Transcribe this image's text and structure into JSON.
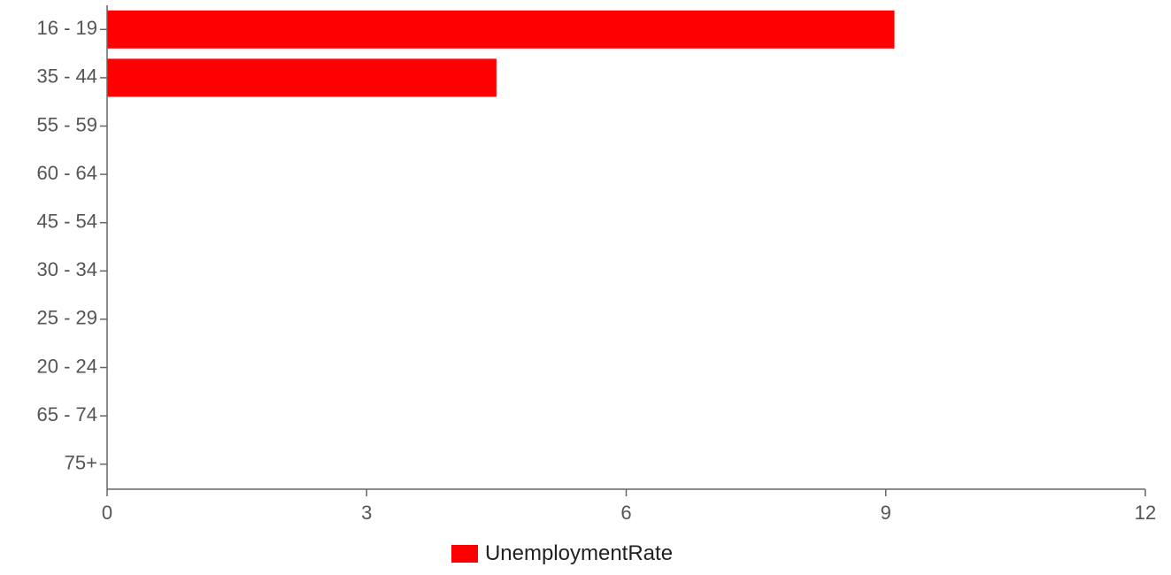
{
  "chart_data": {
    "type": "bar",
    "orientation": "horizontal",
    "categories": [
      "16 - 19",
      "35 - 44",
      "55 - 59",
      "60 - 64",
      "45 - 54",
      "30 - 34",
      "25 - 29",
      "20 - 24",
      "65 - 74",
      "75+"
    ],
    "series": [
      {
        "name": "UnemploymentRate",
        "color": "#ff0000",
        "values": [
          9.1,
          4.5,
          null,
          null,
          null,
          null,
          null,
          null,
          null,
          null
        ]
      }
    ],
    "xticks": [
      "0",
      "3",
      "6",
      "9",
      "12"
    ],
    "xlim": [
      0,
      12
    ],
    "grid": false,
    "legend_position": "bottom"
  }
}
